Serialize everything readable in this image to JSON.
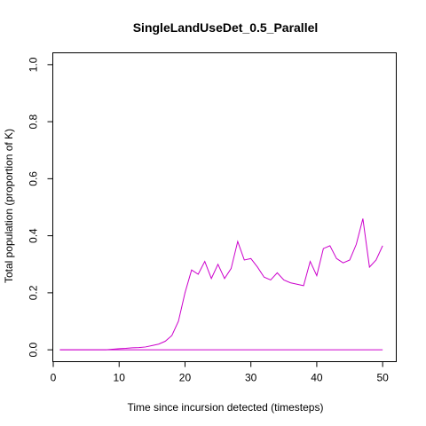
{
  "chart_data": {
    "type": "line",
    "title": "SingleLandUseDet_0.5_Parallel",
    "xlabel": "Time since incursion detected (timesteps)",
    "ylabel": "Total population (proportion of K)",
    "xlim": [
      0,
      52
    ],
    "ylim": [
      -0.04,
      1.04
    ],
    "xticks": [
      0,
      10,
      20,
      30,
      40,
      50
    ],
    "yticks": [
      0.0,
      0.2,
      0.4,
      0.6,
      0.8,
      1.0
    ],
    "xtick_labels": [
      "0",
      "10",
      "20",
      "30",
      "40",
      "50"
    ],
    "ytick_labels": [
      "0.0",
      "0.2",
      "0.4",
      "0.6",
      "0.8",
      "1.0"
    ],
    "grid": false,
    "series": [
      {
        "color": "#cc00cc",
        "x": [
          1,
          2,
          3,
          4,
          5,
          6,
          7,
          8,
          9,
          10,
          11,
          12,
          13,
          14,
          15,
          16,
          17,
          18,
          19,
          20,
          21,
          22,
          23,
          24,
          25,
          26,
          27,
          28,
          29,
          30,
          31,
          32,
          33,
          34,
          35,
          36,
          37,
          38,
          39,
          40,
          41,
          42,
          43,
          44,
          45,
          46,
          47,
          48,
          49,
          50
        ],
        "y": [
          0,
          0,
          0,
          0,
          0,
          0,
          0,
          0,
          0.002,
          0.004,
          0.005,
          0.007,
          0.008,
          0.01,
          0.015,
          0.02,
          0.03,
          0.05,
          0.1,
          0.2,
          0.28,
          0.265,
          0.31,
          0.25,
          0.3,
          0.25,
          0.285,
          0.38,
          0.315,
          0.32,
          0.29,
          0.255,
          0.245,
          0.27,
          0.245,
          0.235,
          0.23,
          0.225,
          0.31,
          0.26,
          0.355,
          0.365,
          0.32,
          0.305,
          0.315,
          0.37,
          0.46,
          0.29,
          0.315,
          0.365
        ]
      },
      {
        "color": "#cc00cc",
        "x": [
          1,
          50
        ],
        "y": [
          0,
          0
        ]
      }
    ]
  }
}
